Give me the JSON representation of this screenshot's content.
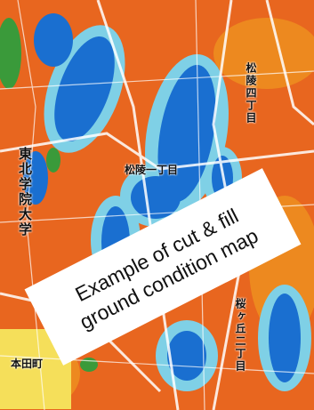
{
  "map": {
    "labels": [
      "松陵四丁目",
      "松陵一丁目",
      "東北学院大学",
      "本田町",
      "桜ヶ丘二丁目"
    ],
    "callout": {
      "line1": "Example of cut & fill",
      "line2": "ground condition map"
    }
  }
}
